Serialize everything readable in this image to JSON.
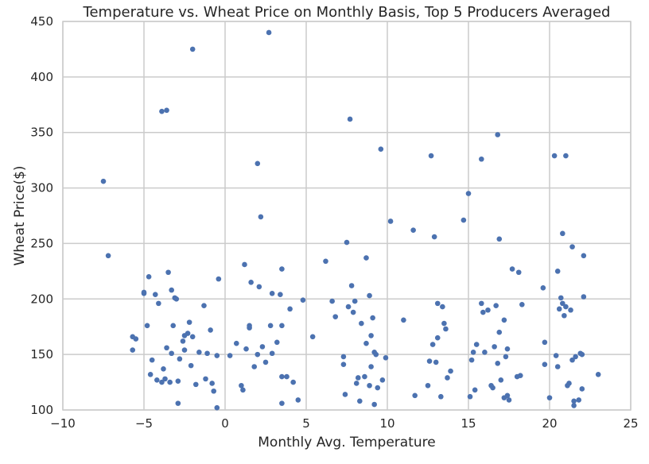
{
  "chart_data": {
    "type": "scatter",
    "title": "Temperature vs. Wheat Price on Monthly Basis, Top 5 Producers Averaged",
    "xlabel": "Monthly Avg. Temperature",
    "ylabel": "Wheat Price($)",
    "xlim": [
      -10,
      25
    ],
    "ylim": [
      100,
      450
    ],
    "xticks": [
      "−10",
      "−5",
      "0",
      "5",
      "10",
      "15",
      "20",
      "25"
    ],
    "yticks": [
      "100",
      "150",
      "200",
      "250",
      "300",
      "350",
      "400",
      "450"
    ],
    "grid": true,
    "colors": {
      "point": "#4c72b0",
      "grid": "#cbcbcb",
      "text": "#262626"
    },
    "points": [
      [
        -7.5,
        306
      ],
      [
        -7.2,
        239
      ],
      [
        -5.7,
        166
      ],
      [
        -5.7,
        154
      ],
      [
        -5.5,
        164
      ],
      [
        -5,
        206
      ],
      [
        -5,
        205
      ],
      [
        -4.8,
        176
      ],
      [
        -4.7,
        220
      ],
      [
        -4.6,
        132
      ],
      [
        -4.5,
        145
      ],
      [
        -4.3,
        204
      ],
      [
        -4.2,
        127
      ],
      [
        -4.1,
        196
      ],
      [
        -3.9,
        369
      ],
      [
        -3.9,
        125
      ],
      [
        -3.8,
        137
      ],
      [
        -3.7,
        128
      ],
      [
        -3.6,
        370
      ],
      [
        -3.6,
        156
      ],
      [
        -3.5,
        224
      ],
      [
        -3.4,
        125
      ],
      [
        -3.3,
        208
      ],
      [
        -3.3,
        151
      ],
      [
        -3.2,
        176
      ],
      [
        -3.1,
        201
      ],
      [
        -3,
        200
      ],
      [
        -2.9,
        106
      ],
      [
        -2.9,
        126
      ],
      [
        -2.8,
        146
      ],
      [
        -2.6,
        162
      ],
      [
        -2.5,
        167
      ],
      [
        -2.5,
        154
      ],
      [
        -2.3,
        169
      ],
      [
        -2.2,
        179
      ],
      [
        -2.1,
        140
      ],
      [
        -2,
        425
      ],
      [
        -2,
        166
      ],
      [
        -1.8,
        123
      ],
      [
        -1.6,
        152
      ],
      [
        -1.3,
        194
      ],
      [
        -1.2,
        128
      ],
      [
        -1.1,
        151
      ],
      [
        -0.9,
        172
      ],
      [
        -0.8,
        124
      ],
      [
        -0.7,
        117
      ],
      [
        -0.5,
        149
      ],
      [
        -0.5,
        102
      ],
      [
        -0.4,
        218
      ],
      [
        0.3,
        149
      ],
      [
        0.7,
        160
      ],
      [
        1,
        122
      ],
      [
        1.1,
        118
      ],
      [
        1.2,
        231
      ],
      [
        1.3,
        155
      ],
      [
        1.5,
        176
      ],
      [
        1.5,
        174
      ],
      [
        1.6,
        215
      ],
      [
        1.8,
        139
      ],
      [
        2,
        322
      ],
      [
        2,
        150
      ],
      [
        2.1,
        211
      ],
      [
        2.2,
        274
      ],
      [
        2.3,
        157
      ],
      [
        2.5,
        143
      ],
      [
        2.7,
        440
      ],
      [
        2.8,
        176
      ],
      [
        2.9,
        151
      ],
      [
        2.9,
        205
      ],
      [
        3.2,
        161
      ],
      [
        3.4,
        204
      ],
      [
        3.5,
        227
      ],
      [
        3.5,
        176
      ],
      [
        3.5,
        106
      ],
      [
        3.5,
        130
      ],
      [
        3.8,
        130
      ],
      [
        4,
        191
      ],
      [
        4.2,
        125
      ],
      [
        4.5,
        109
      ],
      [
        4.8,
        199
      ],
      [
        5.4,
        166
      ],
      [
        6.2,
        234
      ],
      [
        6.6,
        198
      ],
      [
        6.8,
        184
      ],
      [
        7.3,
        148
      ],
      [
        7.3,
        141
      ],
      [
        7.4,
        114
      ],
      [
        7.5,
        251
      ],
      [
        7.6,
        193
      ],
      [
        7.7,
        362
      ],
      [
        7.8,
        212
      ],
      [
        7.9,
        188
      ],
      [
        8,
        198
      ],
      [
        8.1,
        124
      ],
      [
        8.2,
        129
      ],
      [
        8.3,
        108
      ],
      [
        8.4,
        178
      ],
      [
        8.6,
        130
      ],
      [
        8.7,
        237
      ],
      [
        8.7,
        160
      ],
      [
        8.9,
        122
      ],
      [
        8.9,
        203
      ],
      [
        9,
        167
      ],
      [
        9.2,
        105
      ],
      [
        9.1,
        183
      ],
      [
        9,
        139
      ],
      [
        9.2,
        152
      ],
      [
        9.3,
        150
      ],
      [
        9.4,
        120
      ],
      [
        9.6,
        335
      ],
      [
        9.7,
        127
      ],
      [
        9.9,
        147
      ],
      [
        10.2,
        270
      ],
      [
        11,
        181
      ],
      [
        11.6,
        262
      ],
      [
        11.7,
        113
      ],
      [
        12.5,
        122
      ],
      [
        12.6,
        144
      ],
      [
        12.7,
        329
      ],
      [
        12.8,
        159
      ],
      [
        12.9,
        256
      ],
      [
        13,
        143
      ],
      [
        13.1,
        165
      ],
      [
        13.1,
        196
      ],
      [
        13.3,
        112
      ],
      [
        13.4,
        193
      ],
      [
        13.5,
        178
      ],
      [
        13.6,
        173
      ],
      [
        13.7,
        129
      ],
      [
        13.9,
        135
      ],
      [
        14.7,
        271
      ],
      [
        15,
        295
      ],
      [
        15.1,
        112
      ],
      [
        15.2,
        145
      ],
      [
        15.3,
        152
      ],
      [
        15.4,
        118
      ],
      [
        15.5,
        159
      ],
      [
        15.8,
        196
      ],
      [
        15.8,
        326
      ],
      [
        15.9,
        188
      ],
      [
        16,
        152
      ],
      [
        16.2,
        190
      ],
      [
        16.4,
        122
      ],
      [
        16.5,
        120
      ],
      [
        16.6,
        157
      ],
      [
        16.7,
        194
      ],
      [
        16.8,
        348
      ],
      [
        16.8,
        142
      ],
      [
        16.9,
        254
      ],
      [
        16.9,
        170
      ],
      [
        17,
        127
      ],
      [
        17.2,
        111
      ],
      [
        17.2,
        181
      ],
      [
        17.3,
        148
      ],
      [
        17.4,
        113
      ],
      [
        17.4,
        155
      ],
      [
        17.5,
        109
      ],
      [
        17.7,
        227
      ],
      [
        18,
        130
      ],
      [
        18.1,
        224
      ],
      [
        18.2,
        131
      ],
      [
        18.3,
        195
      ],
      [
        19.6,
        210
      ],
      [
        19.7,
        161
      ],
      [
        19.7,
        141
      ],
      [
        20,
        111
      ],
      [
        20.3,
        329
      ],
      [
        20.4,
        149
      ],
      [
        20.5,
        225
      ],
      [
        20.5,
        139
      ],
      [
        20.6,
        191
      ],
      [
        20.7,
        201
      ],
      [
        20.8,
        259
      ],
      [
        20.8,
        196
      ],
      [
        20.9,
        185
      ],
      [
        21,
        193
      ],
      [
        21,
        329
      ],
      [
        21.1,
        122
      ],
      [
        21.2,
        124
      ],
      [
        21.3,
        190
      ],
      [
        21.4,
        145
      ],
      [
        21.4,
        247
      ],
      [
        21.5,
        108
      ],
      [
        21.5,
        104
      ],
      [
        21.6,
        148
      ],
      [
        21.8,
        109
      ],
      [
        21.9,
        151
      ],
      [
        22,
        150
      ],
      [
        22,
        119
      ],
      [
        22.1,
        202
      ],
      [
        22.1,
        239
      ],
      [
        23,
        132
      ]
    ]
  }
}
